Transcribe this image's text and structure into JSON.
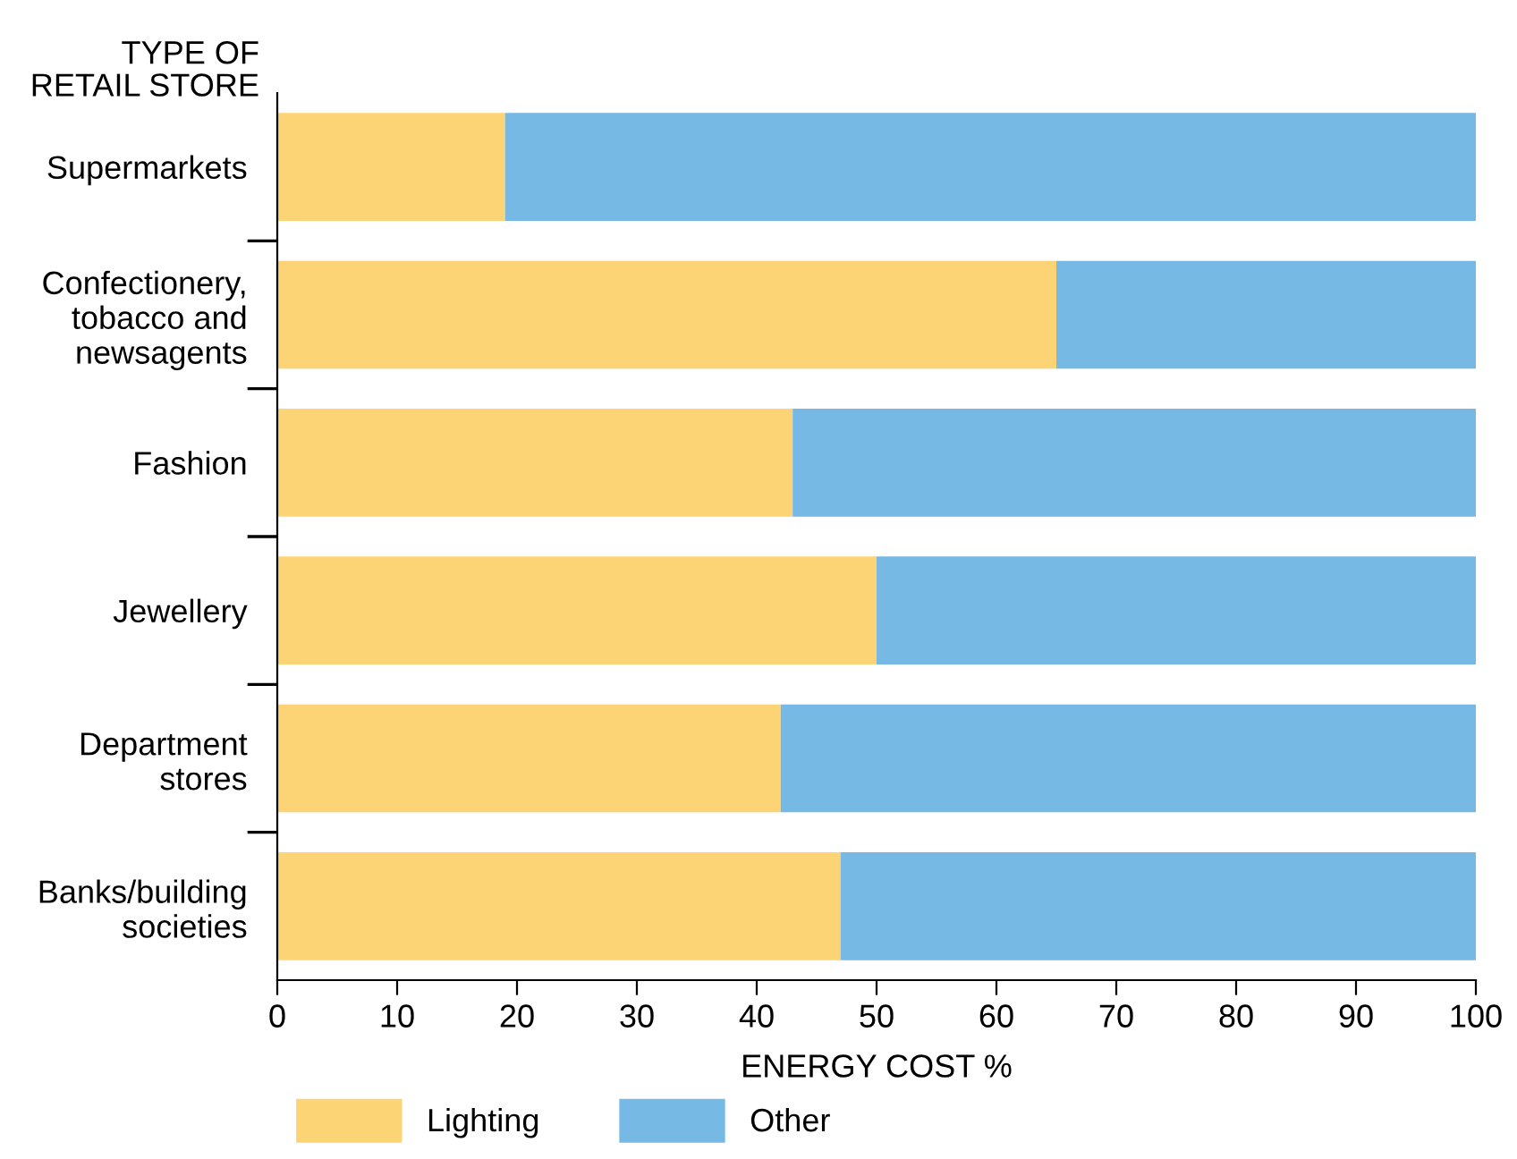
{
  "chart_data": {
    "type": "bar",
    "orientation": "horizontal",
    "stacked": true,
    "ylabel": "TYPE OF\nRETAIL STORE",
    "xlabel": "ENERGY COST %",
    "categories": [
      "Supermarkets",
      "Confectionery,\ntobacco and\nnewsagents",
      "Fashion",
      "Jewellery",
      "Department\nstores",
      "Banks/building\nsocieties"
    ],
    "series": [
      {
        "name": "Lighting",
        "color": "#fcd475",
        "values": [
          19,
          65,
          43,
          50,
          42,
          47
        ]
      },
      {
        "name": "Other",
        "color": "#77b9e5",
        "values": [
          81,
          35,
          57,
          50,
          58,
          53
        ]
      }
    ],
    "xlim": [
      0,
      100
    ],
    "xticks": [
      0,
      10,
      20,
      30,
      40,
      50,
      60,
      70,
      80,
      90,
      100
    ],
    "grid": false,
    "legend": "bottom left"
  }
}
